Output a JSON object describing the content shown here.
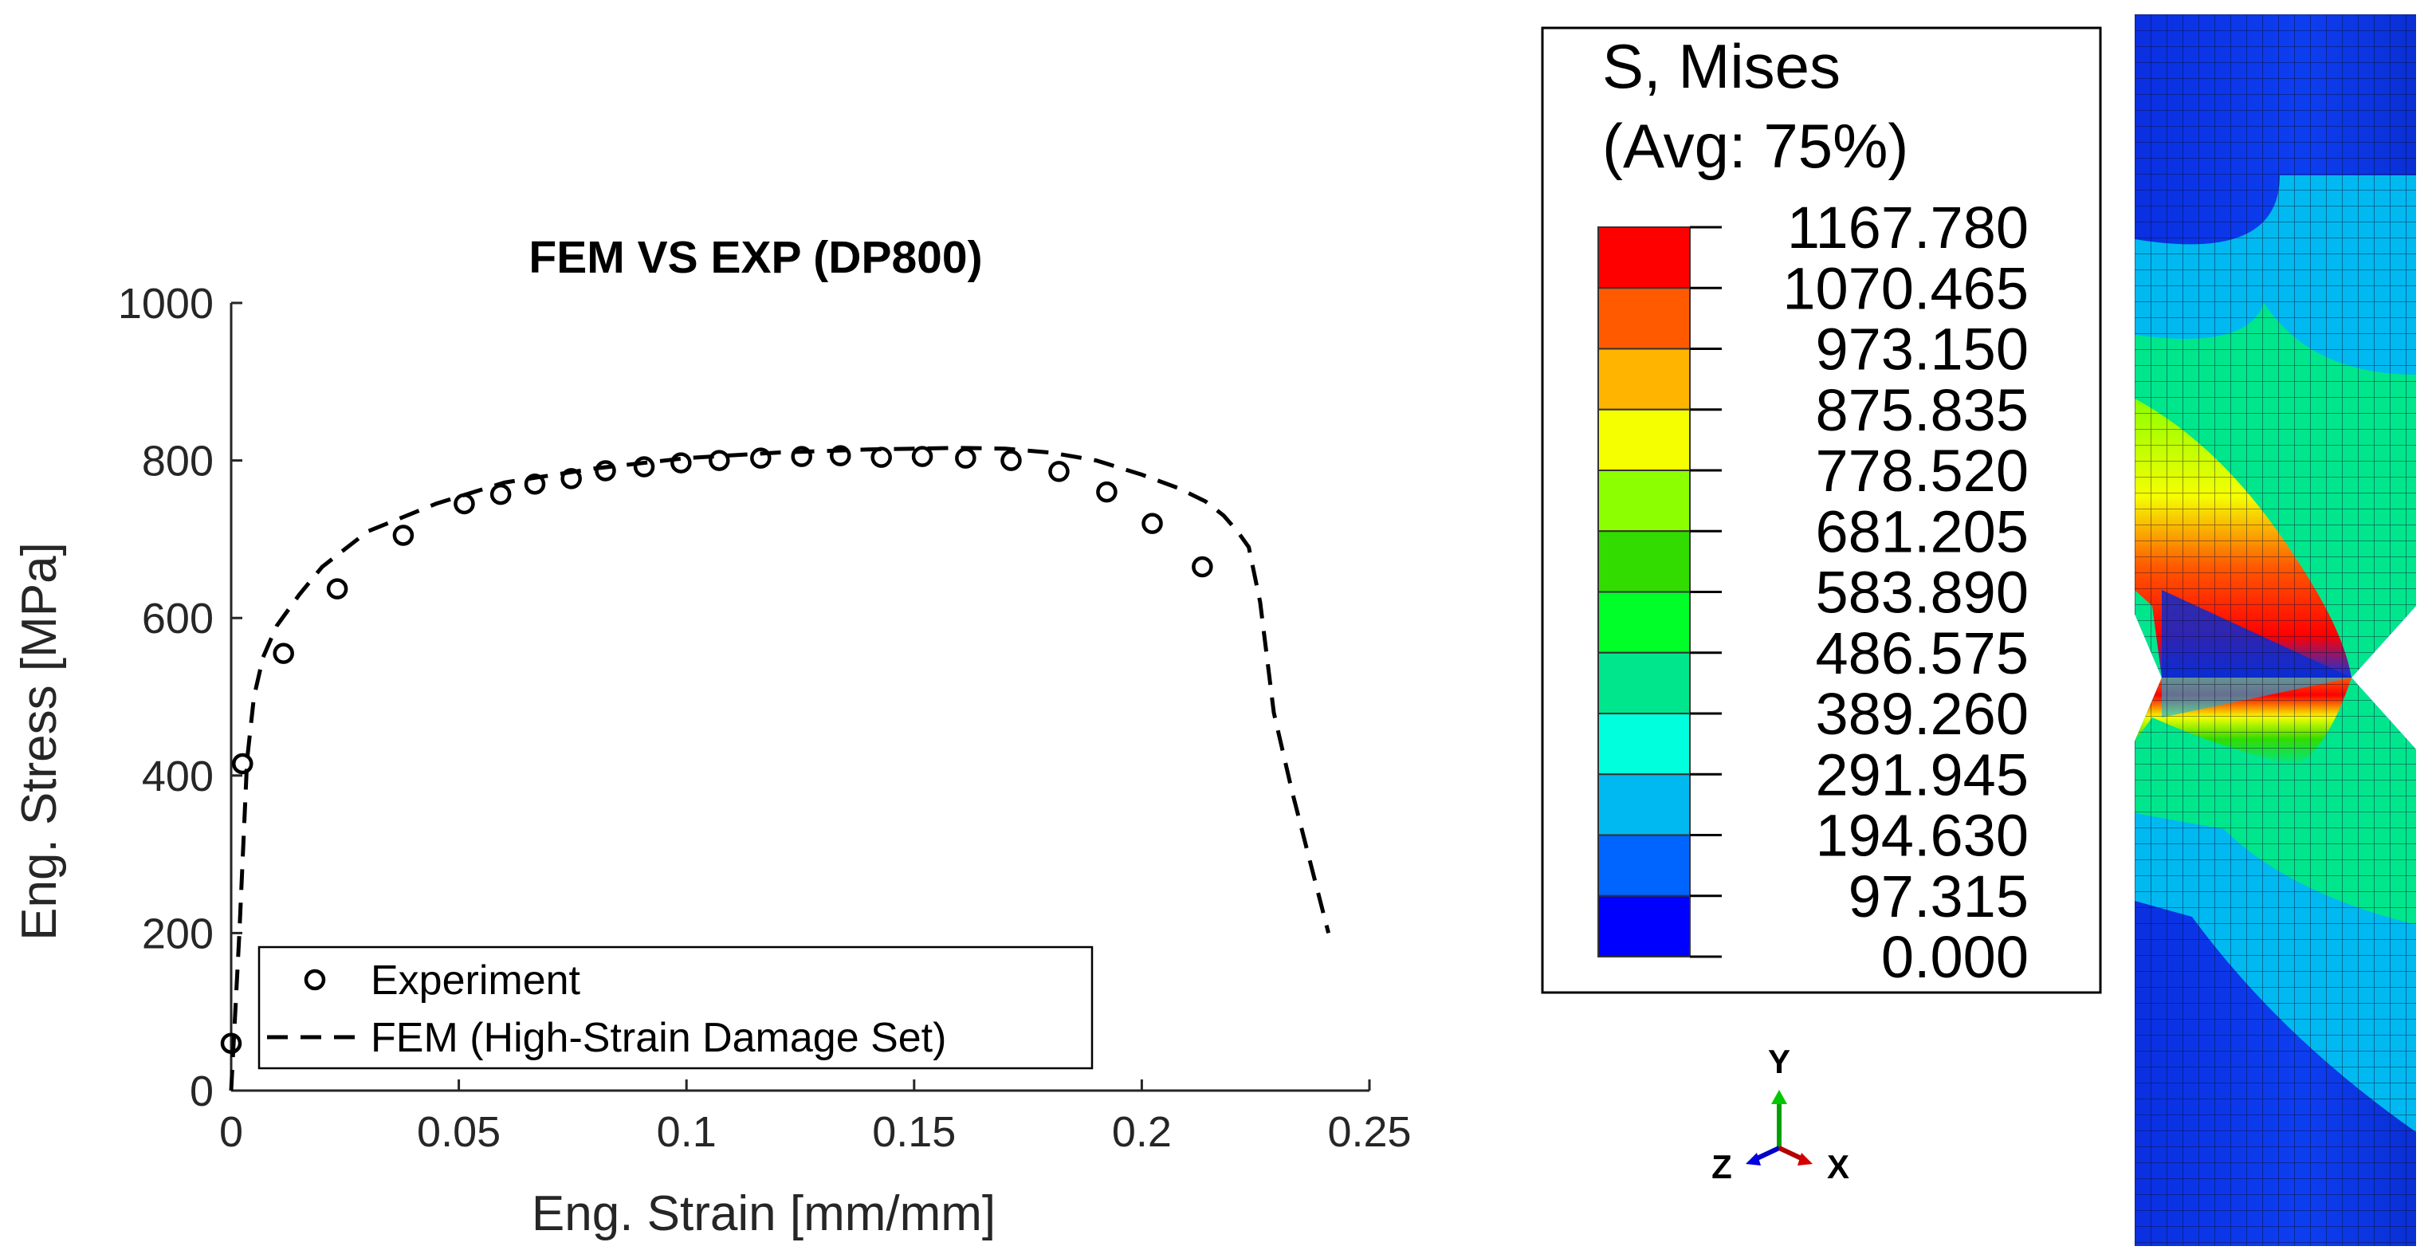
{
  "chart_data": {
    "type": "line",
    "title": "FEM VS EXP (DP800)",
    "xlabel": "Eng. Strain [mm/mm]",
    "ylabel": "Eng. Stress [MPa]",
    "xlim": [
      0,
      0.25
    ],
    "ylim": [
      0,
      1000
    ],
    "xticks": [
      0,
      0.05,
      0.1,
      0.15,
      0.2,
      0.25
    ],
    "xtick_labels": [
      "0",
      "0.05",
      "0.1",
      "0.15",
      "0.2",
      "0.25"
    ],
    "yticks": [
      0,
      200,
      400,
      600,
      800,
      1000
    ],
    "ytick_labels": [
      "0",
      "200",
      "400",
      "600",
      "800",
      "1000"
    ],
    "grid": false,
    "legend_position": "bottom-left",
    "series": [
      {
        "name": "Experiment",
        "style": "markers-circle",
        "x": [
          0.0,
          0.0025,
          0.0115,
          0.0233,
          0.0378,
          0.0512,
          0.0592,
          0.0667,
          0.0747,
          0.0822,
          0.0907,
          0.0988,
          0.1072,
          0.1163,
          0.1253,
          0.1338,
          0.1428,
          0.1518,
          0.1613,
          0.1713,
          0.1818,
          0.1923,
          0.2023,
          0.2133
        ],
        "y": [
          60,
          415,
          555,
          637,
          705,
          745,
          757,
          770,
          777,
          787,
          792,
          797,
          800,
          803,
          805,
          806,
          804,
          805,
          803,
          800,
          786,
          760,
          720,
          665
        ]
      },
      {
        "name": "FEM (High-Strain Damage Set)",
        "style": "dashed",
        "x": [
          0.0,
          0.0018,
          0.0035,
          0.005,
          0.007,
          0.01,
          0.015,
          0.02,
          0.03,
          0.045,
          0.06,
          0.08,
          0.1,
          0.12,
          0.14,
          0.16,
          0.17,
          0.18,
          0.19,
          0.2,
          0.208,
          0.214,
          0.218,
          0.221,
          0.2235,
          0.226,
          0.229,
          0.233,
          0.237,
          0.241
        ],
        "y": [
          0,
          200,
          420,
          500,
          550,
          590,
          630,
          665,
          710,
          745,
          772,
          790,
          803,
          810,
          814,
          816,
          815,
          810,
          800,
          782,
          765,
          748,
          730,
          710,
          690,
          620,
          480,
          380,
          290,
          200
        ]
      }
    ]
  },
  "contour_legend": {
    "title_line1": "S, Mises",
    "title_line2": "(Avg: 75%)",
    "values": [
      "1167.780",
      "1070.465",
      "973.150",
      "875.835",
      "778.520",
      "681.205",
      "583.890",
      "486.575",
      "389.260",
      "291.945",
      "194.630",
      "97.315",
      "0.000"
    ],
    "colors": [
      "#ff0000",
      "#ff5a00",
      "#ffb400",
      "#f5ff00",
      "#8cff00",
      "#32dc00",
      "#00ff28",
      "#00e68c",
      "#00ffdc",
      "#00b9f0",
      "#0064ff",
      "#0000ff"
    ]
  },
  "triad": {
    "y_label": "Y",
    "z_label": "Z",
    "x_label": "X"
  }
}
